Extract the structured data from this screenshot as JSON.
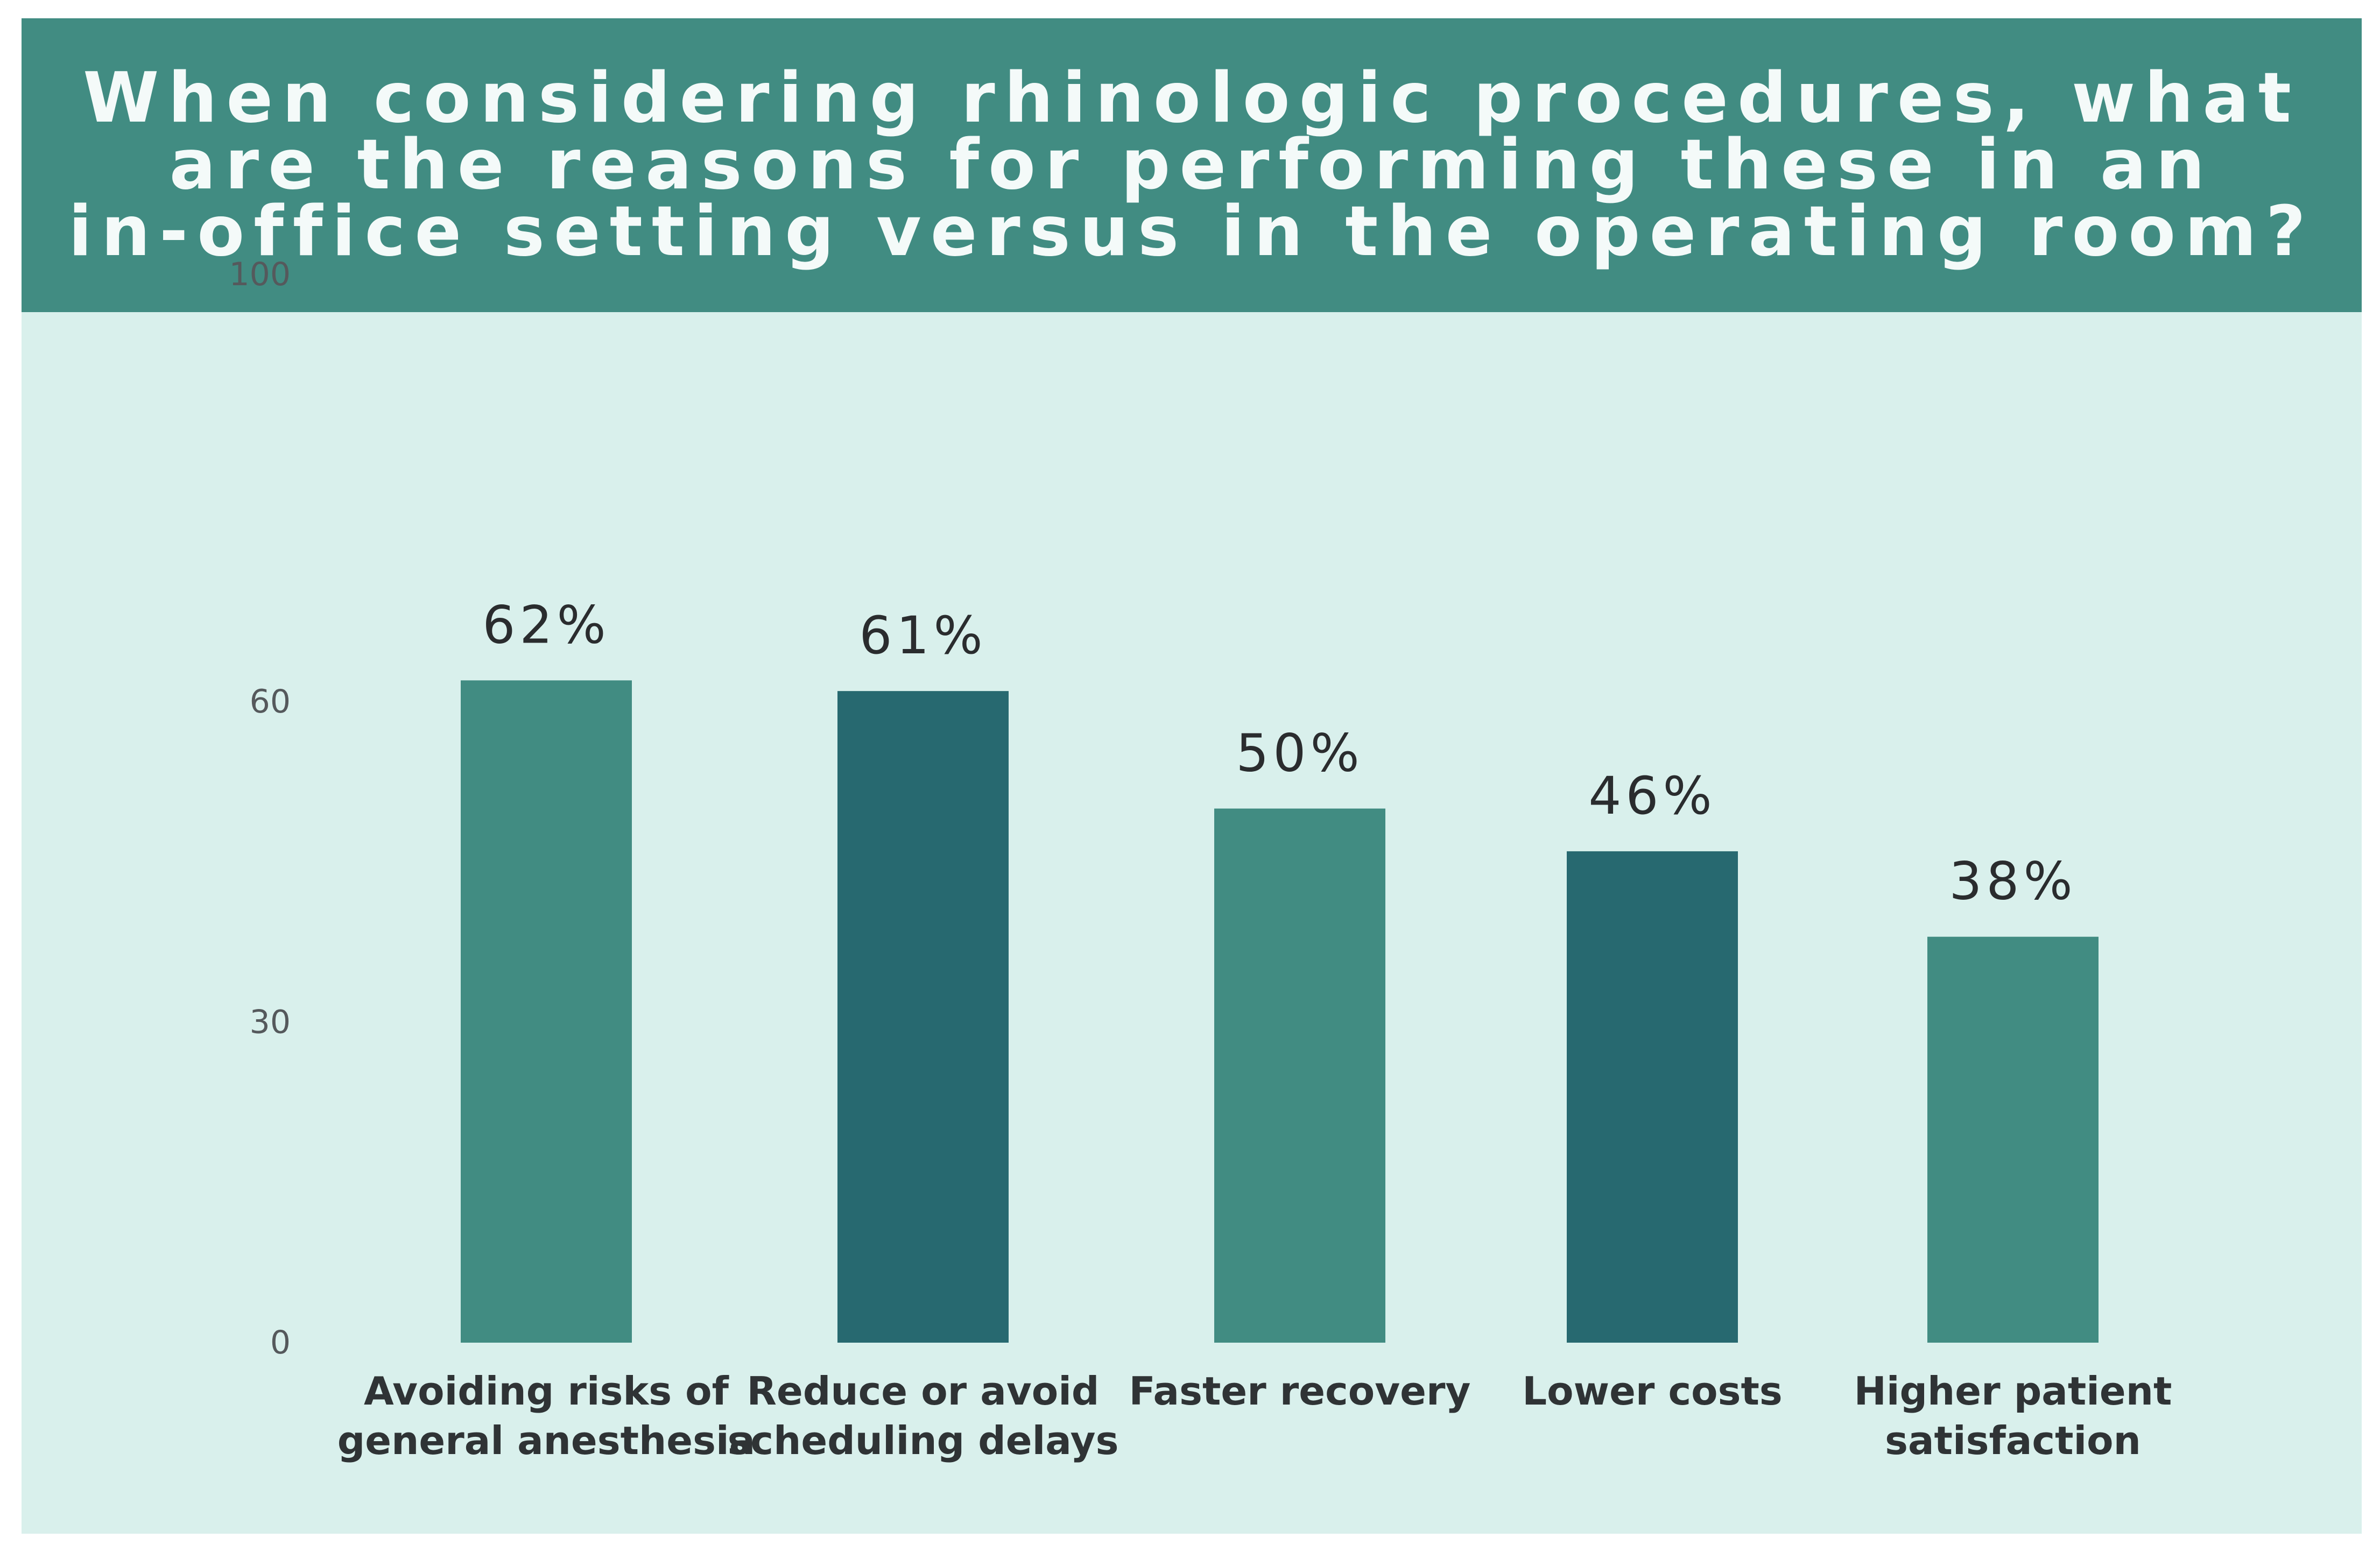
{
  "chart_data": {
    "type": "bar",
    "title": "When considering rhinologic procedures,  what are the reasons for performing these in an in-office setting versus in the operating room?",
    "title_lines": [
      "When considering rhinologic procedures,  what",
      "are the reasons for performing these in an",
      "in-office setting versus in the operating room?"
    ],
    "categories": [
      [
        "Avoiding risks of",
        "general anesthesia"
      ],
      [
        "Reduce or avoid",
        "scheduling delays"
      ],
      [
        "Faster recovery"
      ],
      [
        "Lower costs"
      ],
      [
        "Higher patient",
        "satisfaction"
      ]
    ],
    "values": [
      62,
      61,
      50,
      46,
      38
    ],
    "value_labels": [
      "62%",
      "61%",
      "50%",
      "46%",
      "38%"
    ],
    "bar_colors": [
      "#418c82",
      "#276970",
      "#418c82",
      "#276970",
      "#418c82"
    ],
    "y_ticks": [
      0,
      30,
      60,
      100
    ],
    "xlabel": "",
    "ylabel": "",
    "grid": false
  },
  "colors": {
    "header_bg": "#418c82",
    "card_bg": "#d9f0ec",
    "bar_light": "#418c82",
    "bar_dark": "#276970"
  }
}
